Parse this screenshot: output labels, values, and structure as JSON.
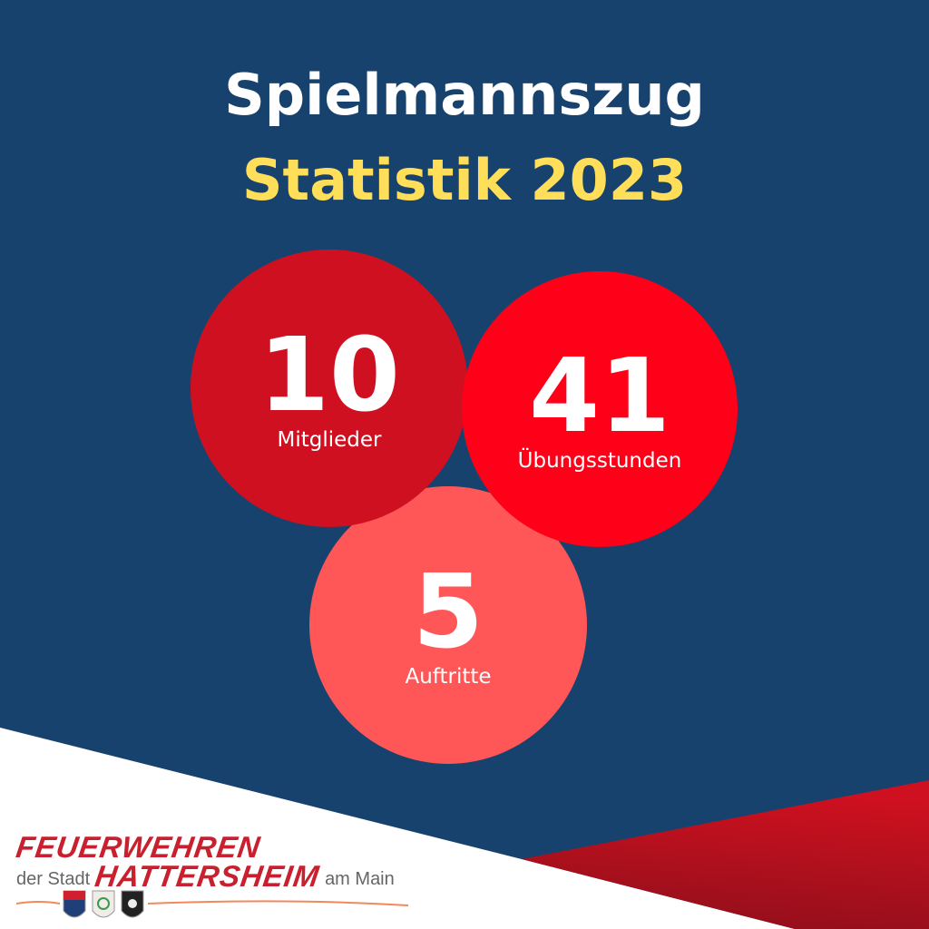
{
  "header": {
    "title": "Spielmannszug",
    "subtitle": "Statistik 2023"
  },
  "stats": [
    {
      "value": "10",
      "label": "Mitglieder",
      "color": "#cf1020"
    },
    {
      "value": "41",
      "label": "Übungsstunden",
      "color": "#ff0019"
    },
    {
      "value": "5",
      "label": "Auftritte",
      "color": "#ff5757"
    }
  ],
  "colors": {
    "background": "#17426d",
    "title": "#ffffff",
    "subtitle": "#ffde59",
    "footer": "#ffffff",
    "accent_red": "#cf1020"
  },
  "logo": {
    "line1": "FEUERWEHREN",
    "prefix": "der Stadt",
    "line2": "HATTERSHEIM",
    "suffix": "am Main"
  }
}
